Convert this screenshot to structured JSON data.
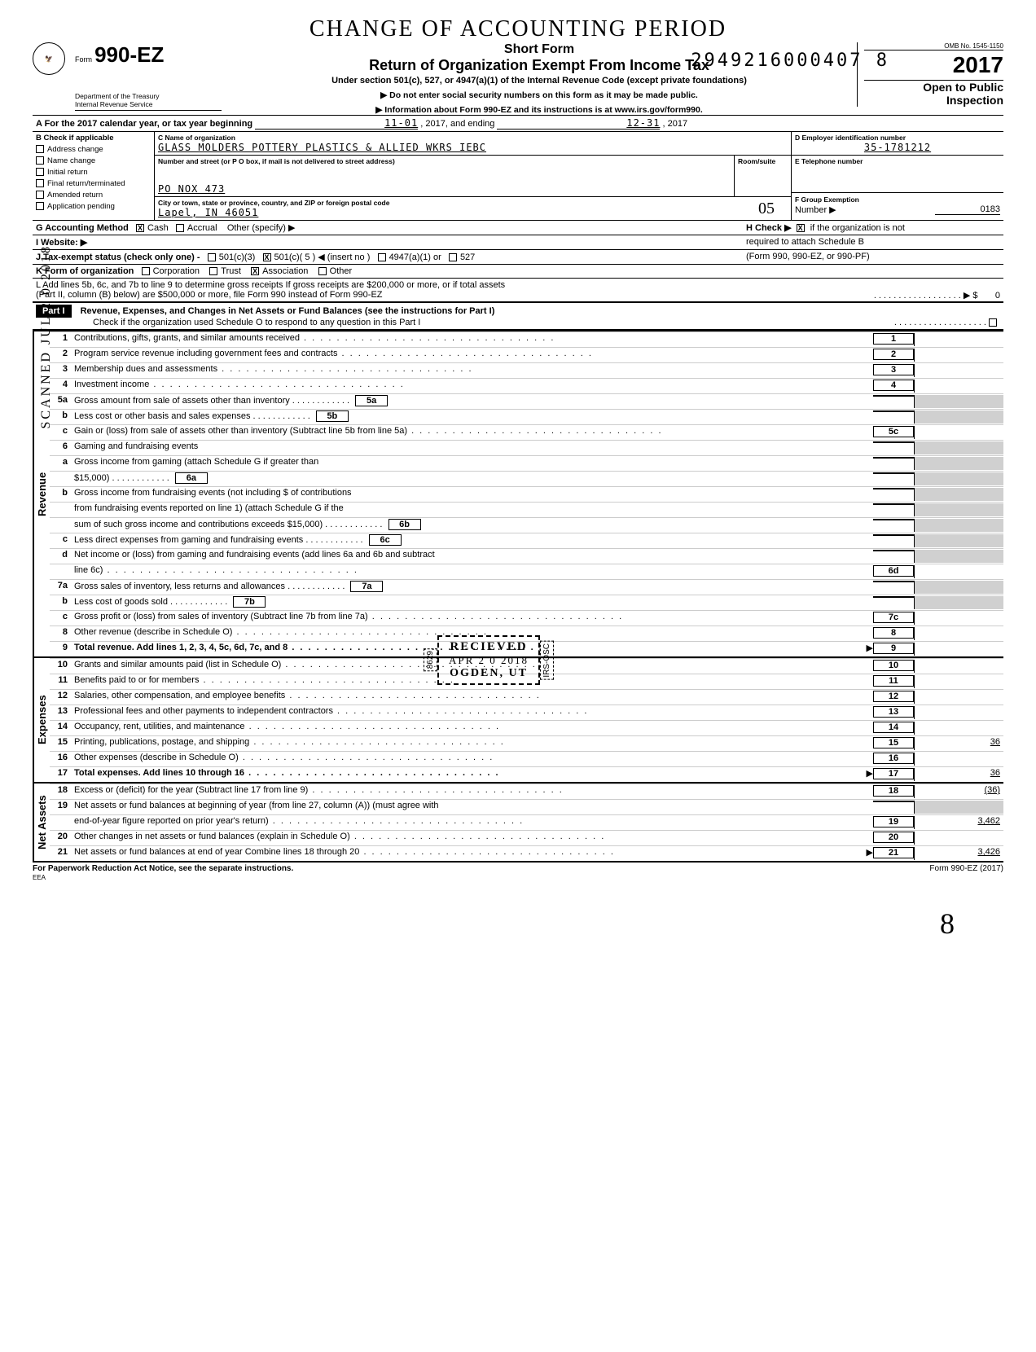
{
  "header": {
    "handwritten_title": "CHANGE OF ACCOUNTING PERIOD",
    "stamp_number": "2949216000407 8",
    "form_label": "Form",
    "form_number": "990-EZ",
    "dept_line1": "Department of the Treasury",
    "dept_line2": "Internal Revenue Service",
    "short_form": "Short Form",
    "main_title": "Return of Organization Exempt From Income Tax",
    "subtitle": "Under section 501(c), 527, or 4947(a)(1) of the Internal Revenue Code (except private foundations)",
    "arrow1": "▶ Do not enter social security numbers on this form as it may be made public.",
    "arrow2": "▶ Information about Form 990-EZ and its instructions is at www.irs.gov/form990.",
    "omb": "OMB No. 1545-1150",
    "year": "2017",
    "open1": "Open to Public",
    "open2": "Inspection"
  },
  "period": {
    "line_a": "A  For the 2017 calendar year, or tax year beginning",
    "begin": "11-01",
    "mid": ", 2017, and ending",
    "end": "12-31",
    "end_year": ", 2017"
  },
  "checkboxes": {
    "header": "B  Check if applicable",
    "items": [
      "Address change",
      "Name change",
      "Initial return",
      "Final return/terminated",
      "Amended return",
      "Application pending"
    ]
  },
  "org": {
    "c_label": "C  Name of organization",
    "name": "GLASS MOLDERS POTTERY PLASTICS & ALLIED WKRS IEBC",
    "street_label": "Number and street (or P O  box, if mail is not delivered to street address)",
    "room_label": "Room/suite",
    "street": "PO NOX 473",
    "city_label": "City or town, state or province, country, and ZIP or foreign postal code",
    "city": "Lapel, IN 46051",
    "hand_num": "05"
  },
  "right_header": {
    "d_label": "D  Employer identification number",
    "ein": "35-1781212",
    "e_label": "E  Telephone number",
    "phone": "",
    "f_label": "F  Group Exemption",
    "f_label2": "Number  ▶",
    "group_num": "0183",
    "h_label": "H  Check ▶",
    "h_text1": "if the organization is not",
    "h_text2": "required to attach Schedule B",
    "h_text3": "(Form 990, 990-EZ, or 990-PF)"
  },
  "lines_gjk": {
    "g": "G  Accounting Method",
    "g_cash": "Cash",
    "g_accrual": "Accrual",
    "g_other": "Other (specify) ▶",
    "i": "I   Website:   ▶",
    "j": "J   Tax-exempt status (check only one) -",
    "j_opts": [
      "501(c)(3)",
      "501(c)( 5  ) ◀ (insert no )",
      "4947(a)(1) or",
      "527"
    ],
    "k": "K  Form of organization",
    "k_opts": [
      "Corporation",
      "Trust",
      "Association",
      "Other"
    ],
    "l1": "L  Add lines 5b, 6c, and 7b to line 9 to determine gross receipts  If gross receipts are $200,000 or more, or if total assets",
    "l2": "(Part II, column (B) below) are $500,000 or more, file Form 990 instead of Form 990-EZ",
    "l_amt": "0"
  },
  "part1": {
    "label": "Part I",
    "title": "Revenue, Expenses, and Changes in Net Assets or Fund Balances (see the instructions for Part I)",
    "check_o": "Check if the organization used Schedule O to respond to any question in this Part I"
  },
  "sections": {
    "revenue": "Revenue",
    "expenses": "Expenses",
    "netassets": "Net Assets"
  },
  "lines": [
    {
      "n": "1",
      "t": "Contributions, gifts, grants, and similar amounts received",
      "box": "1",
      "v": ""
    },
    {
      "n": "2",
      "t": "Program service revenue including government fees and contracts",
      "box": "2",
      "v": ""
    },
    {
      "n": "3",
      "t": "Membership dues and assessments",
      "box": "3",
      "v": ""
    },
    {
      "n": "4",
      "t": "Investment income",
      "box": "4",
      "v": ""
    },
    {
      "n": "5a",
      "t": "Gross amount from sale of assets other than inventory",
      "mid": "5a"
    },
    {
      "n": "b",
      "t": "Less  cost or other basis and sales expenses",
      "mid": "5b"
    },
    {
      "n": "c",
      "t": "Gain or (loss) from sale of assets other than inventory (Subtract line 5b from line 5a)",
      "box": "5c",
      "v": ""
    },
    {
      "n": "6",
      "t": "Gaming and fundraising events"
    },
    {
      "n": "a",
      "t": "Gross income from gaming (attach Schedule G if greater than"
    },
    {
      "n": "",
      "t": "$15,000)",
      "mid": "6a"
    },
    {
      "n": "b",
      "t": "Gross income from fundraising events (not including     $                              of contributions"
    },
    {
      "n": "",
      "t": "from fundraising events reported on line 1) (attach Schedule G if the"
    },
    {
      "n": "",
      "t": "sum of such gross income and contributions exceeds $15,000)",
      "mid": "6b"
    },
    {
      "n": "c",
      "t": "Less  direct expenses from gaming and fundraising events",
      "mid": "6c"
    },
    {
      "n": "d",
      "t": "Net income or (loss) from gaming and fundraising events (add lines 6a and 6b and subtract"
    },
    {
      "n": "",
      "t": "line 6c)",
      "box": "6d",
      "v": ""
    },
    {
      "n": "7a",
      "t": "Gross sales of inventory, less returns and allowances",
      "mid": "7a"
    },
    {
      "n": "b",
      "t": "Less  cost of goods sold",
      "mid": "7b"
    },
    {
      "n": "c",
      "t": "Gross profit or (loss) from sales of inventory (Subtract line 7b from line 7a)",
      "box": "7c",
      "v": ""
    },
    {
      "n": "8",
      "t": "Other revenue (describe in Schedule O)",
      "box": "8",
      "v": ""
    },
    {
      "n": "9",
      "t": "Total revenue.  Add lines 1, 2, 3, 4, 5c, 6d, 7c, and 8",
      "box": "9",
      "v": "",
      "bold": true,
      "arrow": true
    }
  ],
  "exp_lines": [
    {
      "n": "10",
      "t": "Grants and similar amounts paid (list in Schedule O)",
      "box": "10",
      "v": ""
    },
    {
      "n": "11",
      "t": "Benefits paid to or for members",
      "box": "11",
      "v": ""
    },
    {
      "n": "12",
      "t": "Salaries, other compensation, and employee benefits",
      "box": "12",
      "v": ""
    },
    {
      "n": "13",
      "t": "Professional fees and other payments to independent contractors",
      "box": "13",
      "v": ""
    },
    {
      "n": "14",
      "t": "Occupancy, rent, utilities, and maintenance",
      "box": "14",
      "v": ""
    },
    {
      "n": "15",
      "t": "Printing, publications, postage, and shipping",
      "box": "15",
      "v": "36"
    },
    {
      "n": "16",
      "t": "Other expenses (describe in Schedule O)",
      "box": "16",
      "v": ""
    },
    {
      "n": "17",
      "t": "Total expenses.  Add lines 10 through 16",
      "box": "17",
      "v": "36",
      "bold": true,
      "arrow": true
    }
  ],
  "na_lines": [
    {
      "n": "18",
      "t": "Excess or (deficit) for the year (Subtract line 17 from line 9)",
      "box": "18",
      "v": "(36)"
    },
    {
      "n": "19",
      "t": "Net assets or fund balances at beginning of year (from line 27, column (A)) (must agree with"
    },
    {
      "n": "",
      "t": "end-of-year figure reported on prior year's return)",
      "box": "19",
      "v": "3,462"
    },
    {
      "n": "20",
      "t": "Other changes in net assets or fund balances (explain in Schedule O)",
      "box": "20",
      "v": ""
    },
    {
      "n": "21",
      "t": "Net assets or fund balances at end of year  Combine lines 18 through 20",
      "box": "21",
      "v": "3,426",
      "arrow": true
    }
  ],
  "stamp": {
    "l1": "RECIEVED",
    "l2": "APR 2 0 2018",
    "l3": "OGDEN, UT",
    "side1": "8629",
    "side2": "IRS-OSC"
  },
  "footer": {
    "left": "For Paperwork Reduction Act Notice, see the separate instructions.",
    "eea": "EEA",
    "right": "Form 990-EZ (2017)"
  },
  "scanned_text": "SCANNED JUL 2 0 2018",
  "hand_initial": "8"
}
